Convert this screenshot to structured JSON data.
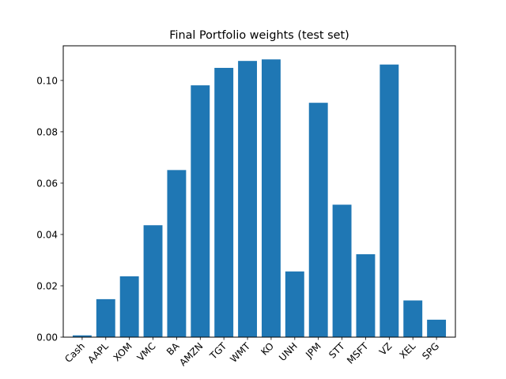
{
  "chart_data": {
    "type": "bar",
    "title": "Final Portfolio weights (test set)",
    "xlabel": "",
    "ylabel": "",
    "categories": [
      "Cash",
      "AAPL",
      "XOM",
      "VMC",
      "BA",
      "AMZN",
      "TGT",
      "WMT",
      "KO",
      "UNH",
      "JPM",
      "STT",
      "MSFT",
      "VZ",
      "XEL",
      "SPG"
    ],
    "values": [
      0.0007,
      0.0148,
      0.0237,
      0.0436,
      0.0651,
      0.0981,
      0.1049,
      0.1076,
      0.1082,
      0.0256,
      0.0913,
      0.0516,
      0.0323,
      0.1062,
      0.0143,
      0.0068
    ],
    "ylim": [
      0,
      0.1135
    ],
    "yticks": [
      "0.00",
      "0.02",
      "0.04",
      "0.06",
      "0.08",
      "0.10"
    ],
    "ytick_values": [
      0,
      0.02,
      0.04,
      0.06,
      0.08,
      0.1
    ],
    "bar_color": "#1f77b4",
    "grid": false,
    "legend": "none"
  }
}
